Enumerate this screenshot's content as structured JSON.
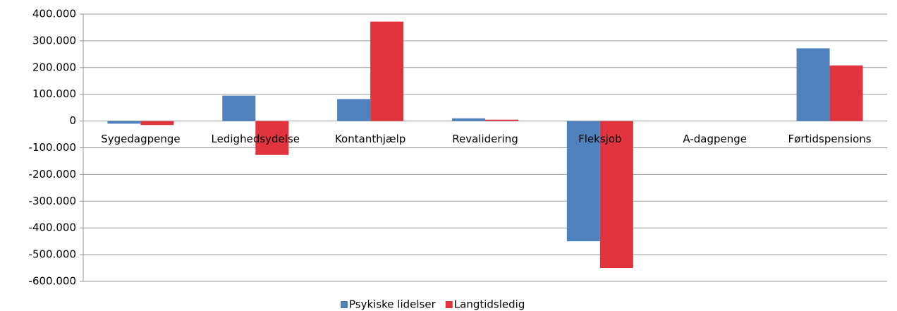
{
  "chart_data": {
    "type": "bar",
    "categories": [
      "Sygedagpenge",
      "Ledighedsydelse",
      "Kontanthjælp",
      "Revalidering",
      "Fleksjob",
      "A-dagpenge",
      "Førtidspensions"
    ],
    "series": [
      {
        "name": "Psykiske lidelser",
        "color": "#4f81bd",
        "values": [
          -10000,
          95000,
          82000,
          10000,
          -450000,
          0,
          272000
        ]
      },
      {
        "name": "Langtidsledig",
        "color": "#e2343e",
        "values": [
          -15000,
          -127000,
          372000,
          5000,
          -550000,
          0,
          208000
        ]
      }
    ],
    "ylim": [
      -600000,
      400000
    ],
    "yticks": [
      {
        "value": -600000,
        "label": "-600.000"
      },
      {
        "value": -500000,
        "label": "-500.000"
      },
      {
        "value": -400000,
        "label": "-400.000"
      },
      {
        "value": -300000,
        "label": "-300.000"
      },
      {
        "value": -200000,
        "label": "-200.000"
      },
      {
        "value": -100000,
        "label": "-100.000"
      },
      0,
      {
        "value": 100000,
        "label": "100.000"
      },
      {
        "value": 200000,
        "label": "200.000"
      },
      {
        "value": 300000,
        "label": "300.000"
      },
      {
        "value": 400000,
        "label": "400.000"
      }
    ],
    "grid": true,
    "legend": "bottom"
  }
}
